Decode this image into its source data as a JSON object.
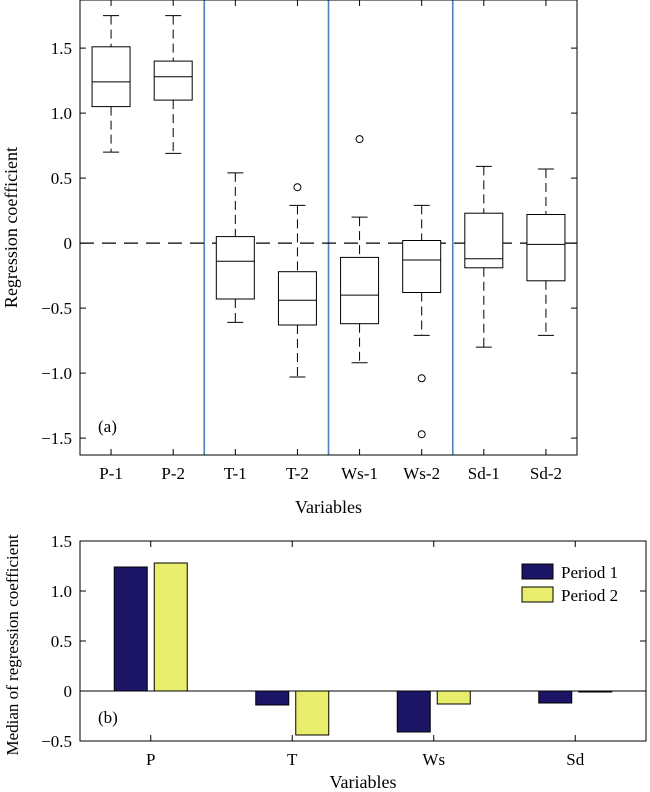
{
  "chart_data": [
    {
      "type": "boxplot",
      "panel_label": "(a)",
      "xlabel": "Variables",
      "ylabel": "Regression coefficient",
      "ylim": [
        -1.63,
        1.87
      ],
      "yticks": [
        1.5,
        1.0,
        0.5,
        0,
        -0.5,
        -1.0,
        -1.5
      ],
      "ytick_labels": [
        "1.5",
        "1.0",
        "0.5",
        "0",
        "−0.5",
        "−1.0",
        "−1.5"
      ],
      "categories": [
        "P-1",
        "P-2",
        "T-1",
        "T-2",
        "Ws-1",
        "Ws-2",
        "Sd-1",
        "Sd-2"
      ],
      "boxes": [
        {
          "whisker_low": 0.7,
          "q1": 1.05,
          "median": 1.24,
          "q3": 1.51,
          "whisker_high": 1.75,
          "outliers": []
        },
        {
          "whisker_low": 0.69,
          "q1": 1.1,
          "median": 1.28,
          "q3": 1.4,
          "whisker_high": 1.75,
          "outliers": []
        },
        {
          "whisker_low": -0.61,
          "q1": -0.43,
          "median": -0.14,
          "q3": 0.05,
          "whisker_high": 0.54,
          "outliers": []
        },
        {
          "whisker_low": -1.03,
          "q1": -0.63,
          "median": -0.44,
          "q3": -0.22,
          "whisker_high": 0.29,
          "outliers": [
            0.43
          ]
        },
        {
          "whisker_low": -0.92,
          "q1": -0.62,
          "median": -0.4,
          "q3": -0.11,
          "whisker_high": 0.2,
          "outliers": [
            0.8
          ]
        },
        {
          "whisker_low": -0.71,
          "q1": -0.38,
          "median": -0.13,
          "q3": 0.02,
          "whisker_high": 0.29,
          "outliers": [
            -1.04,
            -1.47
          ]
        },
        {
          "whisker_low": -0.8,
          "q1": -0.19,
          "median": -0.12,
          "q3": 0.23,
          "whisker_high": 0.59,
          "outliers": []
        },
        {
          "whisker_low": -0.71,
          "q1": -0.29,
          "median": -0.01,
          "q3": 0.22,
          "whisker_high": 0.57,
          "outliers": []
        }
      ],
      "reference_line": 0,
      "group_dividers_after": [
        2,
        4,
        6
      ],
      "divider_color": "#4f81bd"
    },
    {
      "type": "bar",
      "panel_label": "(b)",
      "xlabel": "Variables",
      "ylabel": "Median of regression coefficient",
      "ylim": [
        -0.5,
        1.5
      ],
      "yticks": [
        1.5,
        1.0,
        0.5,
        0,
        -0.5
      ],
      "ytick_labels": [
        "1.5",
        "1.0",
        "0.5",
        "0",
        "−0.5"
      ],
      "categories": [
        "P",
        "T",
        "Ws",
        "Sd"
      ],
      "series": [
        {
          "name": "Period 1",
          "color": "#1c1464",
          "values": [
            1.24,
            -0.14,
            -0.41,
            -0.12
          ]
        },
        {
          "name": "Period 2",
          "color": "#e8ed6b",
          "values": [
            1.28,
            -0.44,
            -0.13,
            -0.01
          ]
        }
      ],
      "legend": "top-right"
    }
  ]
}
